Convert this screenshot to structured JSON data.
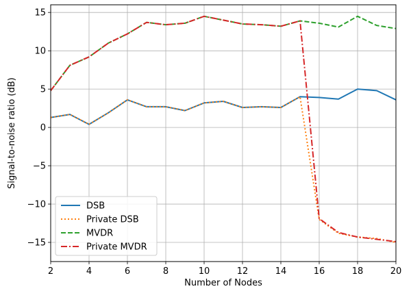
{
  "chart_data": {
    "type": "line",
    "title": "",
    "xlabel": "Number of Nodes",
    "ylabel": "Signal-to-noise ratio (dB)",
    "xlim": [
      2,
      20
    ],
    "ylim": [
      -17.5,
      16
    ],
    "xticks": [
      2,
      4,
      6,
      8,
      10,
      12,
      14,
      16,
      18,
      20
    ],
    "yticks": [
      -15,
      -10,
      -5,
      0,
      5,
      10,
      15
    ],
    "ytick_labels": [
      "−15",
      "−10",
      "−5",
      "0",
      "5",
      "10",
      "15"
    ],
    "grid": true,
    "legend_position": "lower-left",
    "x": [
      2,
      3,
      4,
      5,
      6,
      7,
      8,
      9,
      10,
      11,
      12,
      13,
      14,
      15,
      16,
      17,
      18,
      19,
      20
    ],
    "series": [
      {
        "name": "DSB",
        "color": "#1f77b4",
        "style": "solid",
        "values": [
          1.3,
          1.7,
          0.4,
          1.9,
          3.6,
          2.7,
          2.7,
          2.2,
          3.2,
          3.4,
          2.6,
          2.7,
          2.6,
          4.0,
          3.9,
          3.7,
          5.0,
          4.8,
          3.6
        ]
      },
      {
        "name": "Private DSB",
        "color": "#ff7f0e",
        "style": "dotted",
        "values": [
          1.3,
          1.7,
          0.4,
          1.9,
          3.6,
          2.7,
          2.7,
          2.2,
          3.2,
          3.4,
          2.6,
          2.7,
          2.6,
          4.0,
          -12.0,
          -13.8,
          -14.3,
          -14.5,
          -15.0
        ]
      },
      {
        "name": "MVDR",
        "color": "#2ca02c",
        "style": "dashed",
        "values": [
          4.8,
          8.1,
          9.2,
          11.0,
          12.2,
          13.7,
          13.4,
          13.6,
          14.5,
          14.0,
          13.5,
          13.4,
          13.2,
          13.9,
          13.6,
          13.1,
          14.5,
          13.3,
          12.9
        ]
      },
      {
        "name": "Private MVDR",
        "color": "#d62728",
        "style": "dashdot",
        "values": [
          4.8,
          8.1,
          9.2,
          11.0,
          12.2,
          13.7,
          13.4,
          13.6,
          14.5,
          14.0,
          13.5,
          13.4,
          13.2,
          13.9,
          -11.9,
          -13.7,
          -14.3,
          -14.6,
          -14.9
        ]
      }
    ]
  }
}
